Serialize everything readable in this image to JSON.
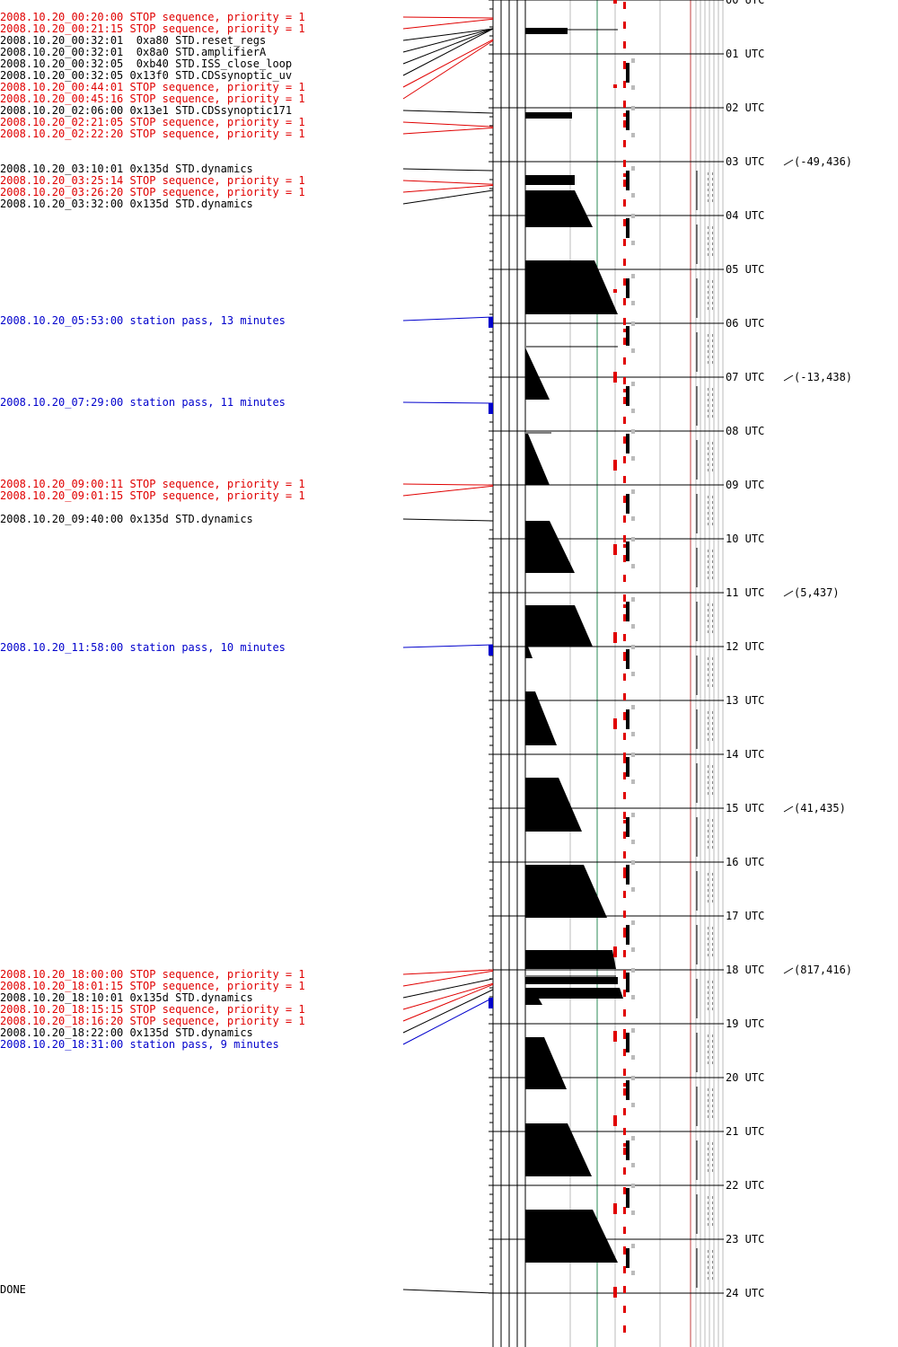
{
  "colors": {
    "stop": "#e00000",
    "command": "#000000",
    "station": "#0000cc",
    "green_line": "#2e8b57",
    "grey_line": "#bbbbbb",
    "red_line": "#c04040"
  },
  "events": [
    {
      "time": "2008.10.20_00:20:00",
      "desc": "STOP sequence, priority = 1",
      "kind": "stop"
    },
    {
      "time": "2008.10.20_00:21:15",
      "desc": "STOP sequence, priority = 1",
      "kind": "stop"
    },
    {
      "time": "2008.10.20_00:32:01",
      "desc": " 0xa80 STD.reset_regs",
      "kind": "command"
    },
    {
      "time": "2008.10.20_00:32:01",
      "desc": " 0x8a0 STD.amplifierA",
      "kind": "command"
    },
    {
      "time": "2008.10.20_00:32:05",
      "desc": " 0xb40 STD.ISS_close_loop",
      "kind": "command"
    },
    {
      "time": "2008.10.20_00:32:05",
      "desc": "0x13f0 STD.CDSsynoptic_uv",
      "kind": "command"
    },
    {
      "time": "2008.10.20_00:44:01",
      "desc": "STOP sequence, priority = 1",
      "kind": "stop"
    },
    {
      "time": "2008.10.20_00:45:16",
      "desc": "STOP sequence, priority = 1",
      "kind": "stop"
    },
    {
      "time": "2008.10.20_02:06:00",
      "desc": "0x13e1 STD.CDSsynoptic171",
      "kind": "command"
    },
    {
      "time": "2008.10.20_02:21:05",
      "desc": "STOP sequence, priority = 1",
      "kind": "stop"
    },
    {
      "time": "2008.10.20_02:22:20",
      "desc": "STOP sequence, priority = 1",
      "kind": "stop"
    },
    {
      "time": "2008.10.20_03:10:01",
      "desc": "0x135d STD.dynamics",
      "kind": "command"
    },
    {
      "time": "2008.10.20_03:25:14",
      "desc": "STOP sequence, priority = 1",
      "kind": "stop"
    },
    {
      "time": "2008.10.20_03:26:20",
      "desc": "STOP sequence, priority = 1",
      "kind": "stop"
    },
    {
      "time": "2008.10.20_03:32:00",
      "desc": "0x135d STD.dynamics",
      "kind": "command"
    },
    {
      "time": "2008.10.20_05:53:00",
      "desc": "station pass, 13 minutes",
      "kind": "station"
    },
    {
      "time": "2008.10.20_07:29:00",
      "desc": "station pass, 11 minutes",
      "kind": "station"
    },
    {
      "time": "2008.10.20_09:00:11",
      "desc": "STOP sequence, priority = 1",
      "kind": "stop"
    },
    {
      "time": "2008.10.20_09:01:15",
      "desc": "STOP sequence, priority = 1",
      "kind": "stop"
    },
    {
      "time": "2008.10.20_09:40:00",
      "desc": "0x135d STD.dynamics",
      "kind": "command"
    },
    {
      "time": "2008.10.20_11:58:00",
      "desc": "station pass, 10 minutes",
      "kind": "station"
    },
    {
      "time": "2008.10.20_18:00:00",
      "desc": "STOP sequence, priority = 1",
      "kind": "stop"
    },
    {
      "time": "2008.10.20_18:01:15",
      "desc": "STOP sequence, priority = 1",
      "kind": "stop"
    },
    {
      "time": "2008.10.20_18:10:01",
      "desc": "0x135d STD.dynamics",
      "kind": "command"
    },
    {
      "time": "2008.10.20_18:15:15",
      "desc": "STOP sequence, priority = 1",
      "kind": "stop"
    },
    {
      "time": "2008.10.20_18:16:20",
      "desc": "STOP sequence, priority = 1",
      "kind": "stop"
    },
    {
      "time": "2008.10.20_18:22:00",
      "desc": "0x135d STD.dynamics",
      "kind": "command"
    },
    {
      "time": "2008.10.20_18:31:00",
      "desc": "station pass, 9 minutes",
      "kind": "station"
    }
  ],
  "done_label": "DONE",
  "hour_labels": [
    "00 UTC",
    "01 UTC",
    "02 UTC",
    "03 UTC",
    "04 UTC",
    "05 UTC",
    "06 UTC",
    "07 UTC",
    "08 UTC",
    "09 UTC",
    "10 UTC",
    "11 UTC",
    "12 UTC",
    "13 UTC",
    "14 UTC",
    "15 UTC",
    "16 UTC",
    "17 UTC",
    "18 UTC",
    "19 UTC",
    "20 UTC",
    "21 UTC",
    "22 UTC",
    "23 UTC",
    "24 UTC"
  ],
  "coordinates": [
    {
      "hour": 3,
      "text": "(-49,436)"
    },
    {
      "hour": 7,
      "text": "(-13,438)"
    },
    {
      "hour": 11,
      "text": "(5,437)"
    },
    {
      "hour": 15,
      "text": "(41,435)"
    },
    {
      "hour": 18,
      "text": "(817,416)"
    }
  ]
}
